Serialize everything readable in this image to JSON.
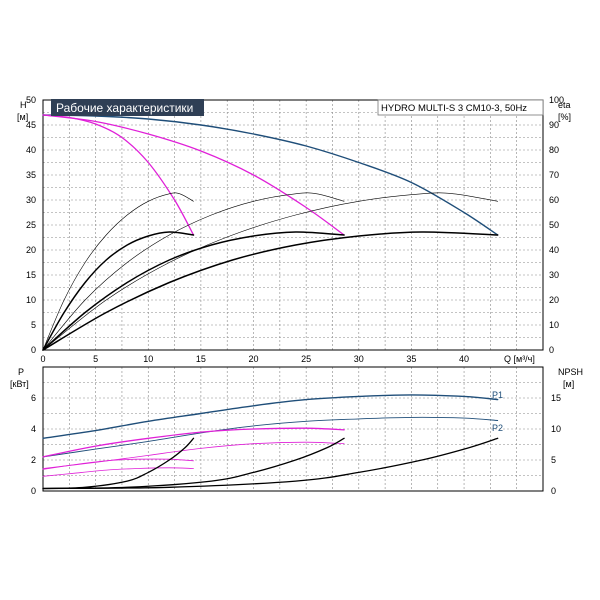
{
  "chart_data": [
    {
      "type": "line",
      "title": "Рабочие характеристики",
      "model_label": "HYDRO MULTI-S 3 CM10-3, 50Hz",
      "xlabel": "Q [м³/ч]",
      "ylabel_left": [
        "H",
        "[м]"
      ],
      "ylabel_right": [
        "eta",
        "[%]"
      ],
      "xlim": [
        0,
        47.5
      ],
      "ylim": [
        0,
        50
      ],
      "ylim_right": [
        0,
        100
      ],
      "x_ticks": [
        0,
        5,
        10,
        15,
        20,
        25,
        30,
        35,
        40
      ],
      "y_ticks": [
        0,
        5,
        10,
        15,
        20,
        25,
        30,
        35,
        40,
        45,
        50
      ],
      "y_ticks_right": [
        0,
        10,
        20,
        30,
        40,
        50,
        60,
        70,
        80,
        90,
        100
      ],
      "grid": true,
      "series": [
        {
          "role": "head-3pumps",
          "color": "#1f4e79",
          "width": 1.4,
          "x": [
            0,
            5,
            10,
            15,
            20,
            25,
            30,
            35,
            40,
            43.2
          ],
          "y": [
            47,
            46.8,
            46.2,
            45,
            43.2,
            40.8,
            37.5,
            33.5,
            27.5,
            23
          ]
        },
        {
          "role": "head-2pumps",
          "color": "#e020d8",
          "width": 1.3,
          "x": [
            0,
            5,
            10,
            15,
            20,
            25,
            28.6
          ],
          "y": [
            47,
            45.7,
            43.2,
            39.8,
            35,
            28.5,
            23
          ]
        },
        {
          "role": "head-1pump",
          "color": "#e020d8",
          "width": 1.3,
          "x": [
            0,
            2.5,
            5,
            7.5,
            10,
            12.5,
            14.3
          ],
          "y": [
            47,
            46.5,
            45.2,
            42.5,
            37.5,
            30,
            23
          ]
        },
        {
          "role": "eta-1pump",
          "color": "#000000",
          "width": 0.6,
          "x": [
            0,
            2,
            4,
            6,
            8,
            10,
            12,
            13,
            14.3
          ],
          "y": [
            0,
            20,
            35,
            46,
            54,
            59.5,
            62.5,
            62.5,
            59.5
          ]
        },
        {
          "role": "eta-2pumps",
          "color": "#000000",
          "width": 0.6,
          "x": [
            0,
            4,
            8,
            12,
            16,
            20,
            24,
            26,
            28.6
          ],
          "y": [
            0,
            20,
            35,
            46,
            54,
            59.5,
            62.5,
            62.5,
            59.5
          ]
        },
        {
          "role": "eta-3pumps",
          "color": "#000000",
          "width": 0.6,
          "x": [
            0,
            6,
            12,
            18,
            24,
            30,
            36,
            39,
            43.2
          ],
          "y": [
            0,
            20,
            35,
            46,
            54,
            59.5,
            62.5,
            62.5,
            59.5
          ]
        },
        {
          "role": "operating-1pump",
          "color": "#000000",
          "width": 1.5,
          "x": [
            0,
            2,
            4,
            6,
            8,
            10,
            12,
            14.3
          ],
          "y": [
            0,
            7.5,
            13.5,
            18,
            21,
            22.8,
            23.6,
            23
          ]
        },
        {
          "role": "operating-2pumps",
          "color": "#000000",
          "width": 1.5,
          "x": [
            0,
            4,
            8,
            12,
            16,
            20,
            24,
            28.6
          ],
          "y": [
            0,
            7.5,
            13.5,
            18,
            21,
            22.8,
            23.6,
            23
          ]
        },
        {
          "role": "operating-3pumps",
          "color": "#000000",
          "width": 1.5,
          "x": [
            0,
            6,
            12,
            18,
            24,
            30,
            36,
            43.2
          ],
          "y": [
            0,
            7.5,
            13.5,
            18,
            21,
            22.8,
            23.6,
            23
          ]
        }
      ]
    },
    {
      "type": "line",
      "xlabel": "Q [м³/ч]",
      "ylabel_left": [
        "P",
        "[кВт]"
      ],
      "ylabel_right": [
        "NPSH",
        "[м]"
      ],
      "xlim": [
        0,
        47.5
      ],
      "ylim": [
        0,
        8
      ],
      "ylim_right": [
        0,
        20
      ],
      "y_ticks": [
        0,
        2,
        4,
        6
      ],
      "y_ticks_right": [
        0,
        5,
        10,
        15
      ],
      "grid": true,
      "series": [
        {
          "name": "P1",
          "role": "p1-3pumps",
          "color": "#1f4e79",
          "width": 1.4,
          "x": [
            0,
            5,
            10,
            15,
            20,
            25,
            30,
            35,
            40,
            43.2
          ],
          "y": [
            3.4,
            3.9,
            4.5,
            5.0,
            5.5,
            5.9,
            6.1,
            6.2,
            6.1,
            5.9
          ]
        },
        {
          "name": "P2",
          "role": "p2-3pumps",
          "color": "#1f4e79",
          "width": 0.9,
          "x": [
            0,
            5,
            10,
            15,
            20,
            25,
            30,
            35,
            40,
            43.2
          ],
          "y": [
            2.2,
            2.7,
            3.2,
            3.75,
            4.2,
            4.5,
            4.65,
            4.75,
            4.7,
            4.55
          ]
        },
        {
          "role": "p1-2pumps",
          "color": "#e020d8",
          "width": 1.3,
          "x": [
            0,
            5,
            10,
            15,
            20,
            25,
            28.6
          ],
          "y": [
            2.2,
            2.9,
            3.4,
            3.8,
            4.0,
            4.05,
            3.95
          ]
        },
        {
          "role": "p2-2pumps",
          "color": "#e020d8",
          "width": 0.8,
          "x": [
            0,
            5,
            10,
            15,
            20,
            25,
            28.6
          ],
          "y": [
            1.45,
            1.85,
            2.3,
            2.75,
            3.05,
            3.15,
            3.05
          ]
        },
        {
          "role": "p1-1pump",
          "color": "#e020d8",
          "width": 0.8,
          "x": [
            0,
            3,
            6,
            9,
            12,
            14.3
          ],
          "y": [
            1.4,
            1.7,
            1.95,
            2.05,
            2.05,
            1.95
          ]
        },
        {
          "role": "p2-1pump",
          "color": "#e020d8",
          "width": 0.8,
          "x": [
            0,
            3,
            6,
            9,
            12,
            14.3
          ],
          "y": [
            0.95,
            1.15,
            1.35,
            1.45,
            1.5,
            1.45
          ]
        },
        {
          "role": "npsh-1pump",
          "axis": "right",
          "color": "#000000",
          "width": 1.3,
          "x": [
            0,
            4,
            8,
            10,
            12,
            13.5,
            14.3
          ],
          "y": [
            0.4,
            0.6,
            1.6,
            3.0,
            5.0,
            7.0,
            8.5
          ]
        },
        {
          "role": "npsh-2pumps",
          "axis": "right",
          "color": "#000000",
          "width": 1.3,
          "x": [
            0,
            8,
            16,
            20,
            24,
            27,
            28.6
          ],
          "y": [
            0.4,
            0.6,
            1.6,
            3.0,
            5.0,
            7.0,
            8.5
          ]
        },
        {
          "role": "npsh-3pumps",
          "axis": "right",
          "color": "#000000",
          "width": 1.3,
          "x": [
            0,
            12,
            24,
            30,
            36,
            40.5,
            43.2
          ],
          "y": [
            0.4,
            0.6,
            1.6,
            3.0,
            5.0,
            7.0,
            8.5
          ]
        }
      ]
    }
  ]
}
